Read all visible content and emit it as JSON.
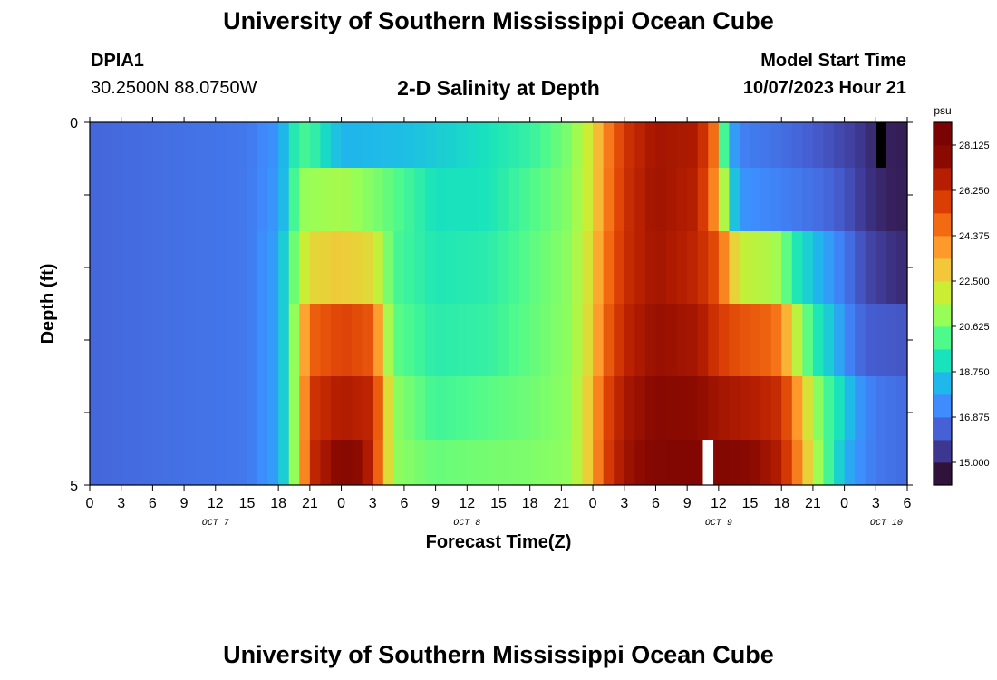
{
  "header": {
    "title": "University of Southern Mississippi Ocean Cube",
    "station_id": "DPIA1",
    "station_coords": "30.2500N  88.0750W",
    "plot_title": "2-D Salinity at Depth",
    "model_start_label": "Model Start Time",
    "model_start_value": "10/07/2023 Hour 21"
  },
  "footer": {
    "title": "University of Southern Mississippi Ocean Cube"
  },
  "chart_data": {
    "type": "heatmap",
    "title": "2-D Salinity at Depth",
    "xlabel": "Forecast Time(Z)",
    "ylabel": "Depth (ft)",
    "x_hours_from_oct7_00z": [
      0,
      3,
      6,
      9,
      12,
      15,
      18,
      21,
      24,
      27,
      30,
      33,
      36,
      39,
      42,
      45,
      48,
      51,
      54,
      57,
      60,
      63,
      66,
      69,
      72,
      75,
      78
    ],
    "x_tick_labels": [
      "0",
      "3",
      "6",
      "9",
      "12",
      "15",
      "18",
      "21",
      "0",
      "3",
      "6",
      "9",
      "12",
      "15",
      "18",
      "21",
      "0",
      "3",
      "6",
      "9",
      "12",
      "15",
      "18",
      "21",
      "0",
      "3",
      "6"
    ],
    "day_labels": [
      {
        "label": "OCT 7",
        "hour": 12
      },
      {
        "label": "OCT 8",
        "hour": 36
      },
      {
        "label": "OCT 9",
        "hour": 60
      },
      {
        "label": "OCT 10",
        "hour": 76
      }
    ],
    "y_range": [
      0,
      5
    ],
    "y_tick_labels": [
      "0",
      "5"
    ],
    "layer_depths_ft": [
      0.25,
      1.0,
      2.0,
      3.0,
      4.0,
      4.75
    ],
    "colorbar": {
      "unit": "psu",
      "min": 14.0625,
      "max": 29.0625,
      "tick_values": [
        15.0,
        16.875,
        18.75,
        20.625,
        22.5,
        24.375,
        26.25,
        28.125
      ],
      "tick_labels": [
        "15.000",
        "16.875",
        "18.750",
        "20.625",
        "22.500",
        "24.375",
        "26.250",
        "28.125"
      ],
      "colors": [
        "#30123b",
        "#3e378f",
        "#4661d6",
        "#3e8cfe",
        "#1fb8ea",
        "#19e3bc",
        "#4ffa8d",
        "#97fe57",
        "#cced34",
        "#f3c73a",
        "#fe9a2c",
        "#f26a12",
        "#db3e05",
        "#b51e01",
        "#8a0a01",
        "#7a0403"
      ]
    },
    "salinity_profiles": [
      {
        "depth_ft": 0.25,
        "knots": [
          [
            0,
            16.2
          ],
          [
            15,
            16.6
          ],
          [
            18,
            17.3
          ],
          [
            19,
            18.8
          ],
          [
            20,
            19.8
          ],
          [
            21,
            19.9
          ],
          [
            22,
            19.1
          ],
          [
            24,
            18.0
          ],
          [
            30,
            18.2
          ],
          [
            36,
            18.8
          ],
          [
            42,
            19.6
          ],
          [
            46,
            20.8
          ],
          [
            48,
            22.5
          ],
          [
            49,
            24.2
          ],
          [
            51,
            26.3
          ],
          [
            54,
            27.5
          ],
          [
            58,
            27.2
          ],
          [
            59.5,
            25.0
          ],
          [
            60,
            21.8
          ],
          [
            61,
            18.0
          ],
          [
            62,
            16.8
          ],
          [
            66,
            16.4
          ],
          [
            70,
            15.8
          ],
          [
            73,
            15.2
          ],
          [
            75,
            14.6
          ],
          [
            77,
            14.4
          ]
        ]
      },
      {
        "depth_ft": 1.0,
        "knots": [
          [
            0,
            16.2
          ],
          [
            15,
            16.6
          ],
          [
            18,
            17.4
          ],
          [
            19,
            18.8
          ],
          [
            20,
            21.0
          ],
          [
            24,
            21.4
          ],
          [
            28,
            20.5
          ],
          [
            33,
            19.0
          ],
          [
            38,
            19.1
          ],
          [
            42,
            20.0
          ],
          [
            46,
            20.9
          ],
          [
            48,
            22.5
          ],
          [
            49,
            24.3
          ],
          [
            51,
            26.4
          ],
          [
            54,
            27.6
          ],
          [
            58,
            27.0
          ],
          [
            59.5,
            24.5
          ],
          [
            60.5,
            21.5
          ],
          [
            61.5,
            18.3
          ],
          [
            62.5,
            17.2
          ],
          [
            66,
            16.8
          ],
          [
            70,
            16.3
          ],
          [
            72,
            15.8
          ],
          [
            74,
            15.0
          ],
          [
            76,
            14.5
          ],
          [
            78,
            14.4
          ]
        ]
      },
      {
        "depth_ft": 2.0,
        "knots": [
          [
            0,
            16.2
          ],
          [
            15,
            16.6
          ],
          [
            18,
            17.6
          ],
          [
            19,
            19.5
          ],
          [
            20,
            21.5
          ],
          [
            21,
            22.6
          ],
          [
            24,
            23.0
          ],
          [
            27,
            22.5
          ],
          [
            28,
            21.3
          ],
          [
            29,
            20.0
          ],
          [
            33,
            19.2
          ],
          [
            38,
            19.4
          ],
          [
            42,
            20.2
          ],
          [
            46,
            21.0
          ],
          [
            48,
            22.8
          ],
          [
            49,
            24.6
          ],
          [
            51,
            26.5
          ],
          [
            54,
            27.5
          ],
          [
            58,
            26.8
          ],
          [
            60,
            25.5
          ],
          [
            61,
            23.5
          ],
          [
            62,
            22.0
          ],
          [
            65,
            21.5
          ],
          [
            66,
            21.0
          ],
          [
            67,
            19.5
          ],
          [
            69,
            18.3
          ],
          [
            72,
            16.6
          ],
          [
            74,
            15.5
          ],
          [
            76,
            15.0
          ],
          [
            78,
            14.7
          ]
        ]
      },
      {
        "depth_ft": 3.0,
        "knots": [
          [
            0,
            16.2
          ],
          [
            15,
            16.6
          ],
          [
            18,
            17.6
          ],
          [
            19,
            19.5
          ],
          [
            20,
            22.5
          ],
          [
            21,
            25.2
          ],
          [
            24,
            26.0
          ],
          [
            27,
            25.5
          ],
          [
            28,
            22.5
          ],
          [
            29,
            20.3
          ],
          [
            33,
            19.4
          ],
          [
            38,
            19.6
          ],
          [
            42,
            20.3
          ],
          [
            46,
            21.0
          ],
          [
            48,
            23.0
          ],
          [
            49,
            25.0
          ],
          [
            51,
            26.8
          ],
          [
            54,
            27.8
          ],
          [
            58,
            27.4
          ],
          [
            60,
            26.2
          ],
          [
            62,
            25.6
          ],
          [
            65,
            25.2
          ],
          [
            66,
            24.5
          ],
          [
            67,
            22.5
          ],
          [
            68,
            21.0
          ],
          [
            69,
            19.5
          ],
          [
            71,
            18.2
          ],
          [
            72,
            17.1
          ],
          [
            74,
            16.0
          ],
          [
            78,
            15.8
          ]
        ]
      },
      {
        "depth_ft": 4.0,
        "knots": [
          [
            0,
            16.2
          ],
          [
            15,
            16.6
          ],
          [
            18,
            17.6
          ],
          [
            19,
            19.5
          ],
          [
            20,
            22.5
          ],
          [
            21,
            26.3
          ],
          [
            24,
            27.2
          ],
          [
            27,
            26.8
          ],
          [
            28,
            24.0
          ],
          [
            29,
            21.0
          ],
          [
            33,
            19.8
          ],
          [
            38,
            20.2
          ],
          [
            42,
            20.5
          ],
          [
            46,
            21.0
          ],
          [
            48,
            23.5
          ],
          [
            49,
            25.6
          ],
          [
            51,
            27.3
          ],
          [
            54,
            28.2
          ],
          [
            58,
            28.0
          ],
          [
            60,
            27.5
          ],
          [
            64,
            27.0
          ],
          [
            66,
            26.5
          ],
          [
            67,
            25.0
          ],
          [
            68,
            23.2
          ],
          [
            69,
            21.5
          ],
          [
            70,
            20.2
          ],
          [
            72,
            18.7
          ],
          [
            73,
            17.5
          ],
          [
            75,
            16.6
          ],
          [
            78,
            16.3
          ]
        ]
      },
      {
        "depth_ft": 4.75,
        "knots": [
          [
            0,
            16.2
          ],
          [
            15,
            16.6
          ],
          [
            18,
            17.6
          ],
          [
            19,
            19.5
          ],
          [
            20,
            22.5
          ],
          [
            21,
            26.5
          ],
          [
            24,
            28.4
          ],
          [
            26,
            27.9
          ],
          [
            27,
            26.5
          ],
          [
            28,
            24.0
          ],
          [
            29,
            21.0
          ],
          [
            33,
            20.4
          ],
          [
            38,
            20.6
          ],
          [
            42,
            20.7
          ],
          [
            46,
            21.0
          ],
          [
            48,
            23.5
          ],
          [
            49,
            25.8
          ],
          [
            51,
            27.5
          ],
          [
            54,
            28.5
          ],
          [
            58,
            28.6
          ],
          [
            60,
            28.5
          ],
          [
            63,
            28.2
          ],
          [
            66,
            27.0
          ],
          [
            67,
            25.5
          ],
          [
            68,
            23.8
          ],
          [
            69,
            21.9
          ],
          [
            70,
            20.5
          ],
          [
            71,
            19.2
          ],
          [
            72,
            18.1
          ],
          [
            73,
            17.3
          ],
          [
            75,
            16.6
          ],
          [
            78,
            16.3
          ]
        ]
      }
    ],
    "missing_cells": [
      {
        "depth_ft": 0.25,
        "hour_start": 75,
        "hour_end": 76,
        "color": "#000000"
      },
      {
        "depth_ft": 4.75,
        "hour_start": 58.5,
        "hour_end": 59.5,
        "color": "#ffffff"
      }
    ],
    "grid": false
  }
}
